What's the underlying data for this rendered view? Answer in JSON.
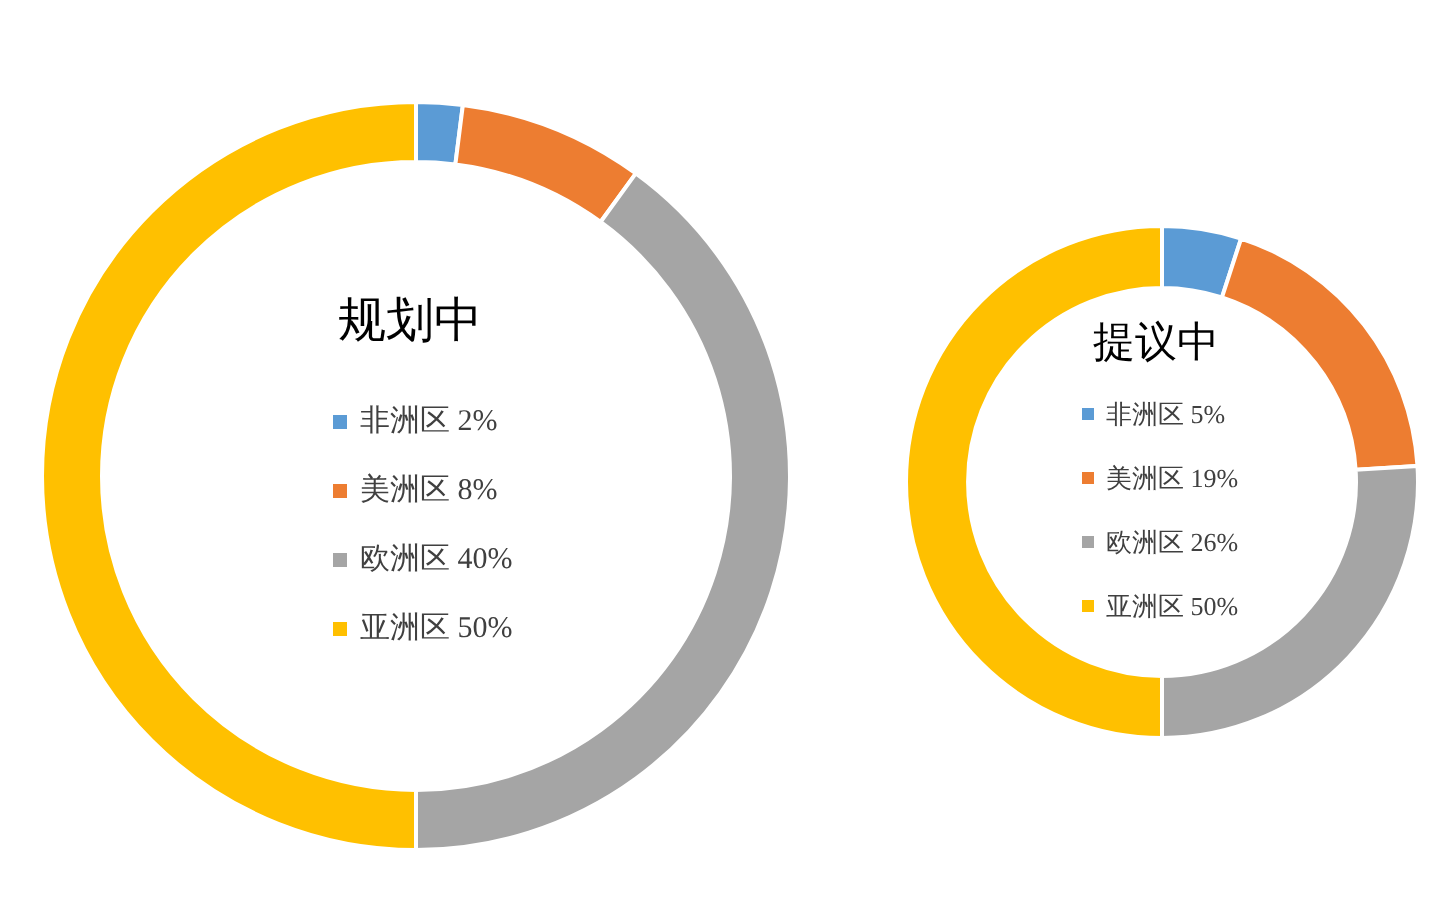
{
  "chart_data": [
    {
      "type": "donut",
      "title": "规划中",
      "categories": [
        "非洲区",
        "美洲区",
        "欧洲区",
        "亚洲区"
      ],
      "values": [
        2,
        8,
        40,
        50
      ],
      "value_labels": [
        "2%",
        "8%",
        "40%",
        "50%"
      ],
      "colors": [
        "#5b9bd5",
        "#ed7d31",
        "#a5a5a5",
        "#ffc000"
      ],
      "legend": "center"
    },
    {
      "type": "donut",
      "title": "提议中",
      "categories": [
        "非洲区",
        "美洲区",
        "欧洲区",
        "亚洲区"
      ],
      "values": [
        5,
        19,
        26,
        50
      ],
      "value_labels": [
        "5%",
        "19%",
        "26%",
        "50%"
      ],
      "colors": [
        "#5b9bd5",
        "#ed7d31",
        "#a5a5a5",
        "#ffc000"
      ],
      "legend": "center"
    }
  ]
}
